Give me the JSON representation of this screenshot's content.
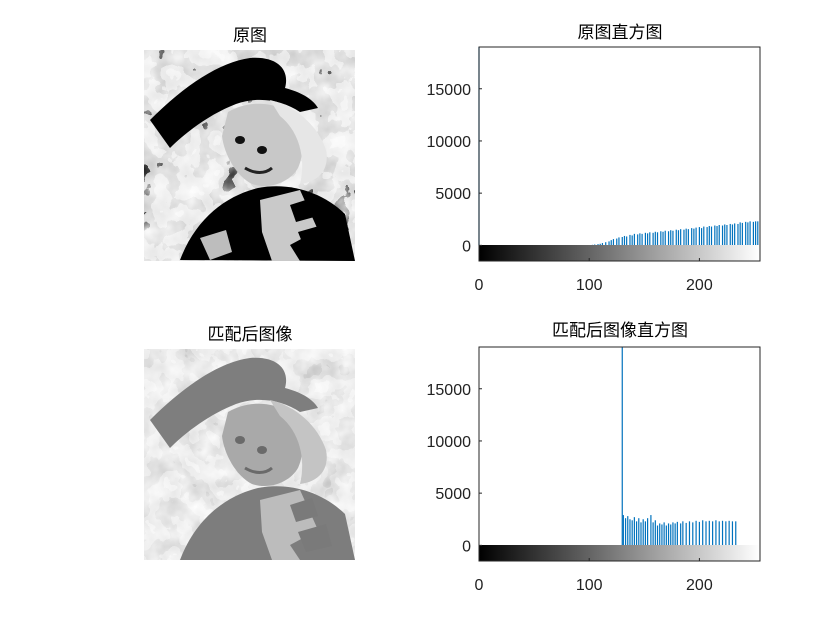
{
  "figure": {
    "panels": [
      {
        "title": "原图"
      },
      {
        "title": "原图直方图"
      },
      {
        "title": "匹配后图像"
      },
      {
        "title": "匹配后图像直方图"
      }
    ],
    "colors": {
      "bar": "#0072BD",
      "axis": "#262626",
      "background": "#ffffff"
    }
  },
  "chart_data": [
    {
      "type": "bar",
      "title": "原图直方图",
      "xlim": [
        0,
        255
      ],
      "ylim": [
        -1500,
        19000
      ],
      "xticks": [
        "0",
        "100",
        "200"
      ],
      "yticks": [
        "0",
        "5000",
        "10000",
        "15000"
      ],
      "colorbar": "grayscale 0-255",
      "spike": {
        "x": 0,
        "value": 19000
      },
      "bars": [
        [
          103,
          50
        ],
        [
          105,
          80
        ],
        [
          108,
          120
        ],
        [
          110,
          150
        ],
        [
          112,
          220
        ],
        [
          115,
          300
        ],
        [
          118,
          380
        ],
        [
          120,
          500
        ],
        [
          122,
          600
        ],
        [
          125,
          650
        ],
        [
          127,
          760
        ],
        [
          130,
          800
        ],
        [
          132,
          900
        ],
        [
          134,
          850
        ],
        [
          137,
          1000
        ],
        [
          139,
          950
        ],
        [
          141,
          1100
        ],
        [
          144,
          1050
        ],
        [
          146,
          1150
        ],
        [
          148,
          1100
        ],
        [
          151,
          1200
        ],
        [
          153,
          1150
        ],
        [
          155,
          1250
        ],
        [
          158,
          1200
        ],
        [
          160,
          1300
        ],
        [
          162,
          1250
        ],
        [
          165,
          1350
        ],
        [
          167,
          1300
        ],
        [
          169,
          1400
        ],
        [
          172,
          1350
        ],
        [
          174,
          1450
        ],
        [
          176,
          1400
        ],
        [
          179,
          1500
        ],
        [
          181,
          1450
        ],
        [
          183,
          1550
        ],
        [
          186,
          1500
        ],
        [
          188,
          1600
        ],
        [
          190,
          1550
        ],
        [
          193,
          1650
        ],
        [
          195,
          1600
        ],
        [
          197,
          1700
        ],
        [
          200,
          1750
        ],
        [
          202,
          1650
        ],
        [
          204,
          1800
        ],
        [
          207,
          1750
        ],
        [
          209,
          1850
        ],
        [
          211,
          1800
        ],
        [
          214,
          1900
        ],
        [
          216,
          1850
        ],
        [
          218,
          1950
        ],
        [
          221,
          1900
        ],
        [
          223,
          2000
        ],
        [
          225,
          1950
        ],
        [
          228,
          2050
        ],
        [
          230,
          2000
        ],
        [
          232,
          2100
        ],
        [
          235,
          2050
        ],
        [
          237,
          2200
        ],
        [
          239,
          2150
        ],
        [
          242,
          2250
        ],
        [
          244,
          2200
        ],
        [
          246,
          2300
        ],
        [
          249,
          2250
        ],
        [
          251,
          2300
        ],
        [
          253,
          2300
        ]
      ]
    },
    {
      "type": "bar",
      "title": "匹配后图像直方图",
      "xlim": [
        0,
        255
      ],
      "ylim": [
        -1500,
        19000
      ],
      "xticks": [
        "0",
        "100",
        "200"
      ],
      "yticks": [
        "0",
        "5000",
        "10000",
        "15000"
      ],
      "colorbar": "grayscale 0-255",
      "spike": {
        "x": 130,
        "value": 19000
      },
      "bars": [
        [
          131,
          2900
        ],
        [
          133,
          2600
        ],
        [
          135,
          2800
        ],
        [
          137,
          2500
        ],
        [
          139,
          2400
        ],
        [
          141,
          2700
        ],
        [
          143,
          2300
        ],
        [
          145,
          2600
        ],
        [
          147,
          2200
        ],
        [
          149,
          2500
        ],
        [
          151,
          2300
        ],
        [
          153,
          2600
        ],
        [
          156,
          2900
        ],
        [
          158,
          2200
        ],
        [
          160,
          2400
        ],
        [
          162,
          1900
        ],
        [
          164,
          2100
        ],
        [
          166,
          2000
        ],
        [
          168,
          2200
        ],
        [
          170,
          1900
        ],
        [
          172,
          2100
        ],
        [
          174,
          2000
        ],
        [
          176,
          2200
        ],
        [
          178,
          2100
        ],
        [
          180,
          2250
        ],
        [
          183,
          2100
        ],
        [
          185,
          2300
        ],
        [
          188,
          2150
        ],
        [
          191,
          2300
        ],
        [
          194,
          2200
        ],
        [
          197,
          2350
        ],
        [
          200,
          2250
        ],
        [
          203,
          2400
        ],
        [
          206,
          2300
        ],
        [
          209,
          2350
        ],
        [
          212,
          2300
        ],
        [
          215,
          2400
        ],
        [
          218,
          2300
        ],
        [
          221,
          2350
        ],
        [
          224,
          2300
        ],
        [
          227,
          2350
        ],
        [
          230,
          2300
        ],
        [
          233,
          2300
        ]
      ]
    }
  ]
}
